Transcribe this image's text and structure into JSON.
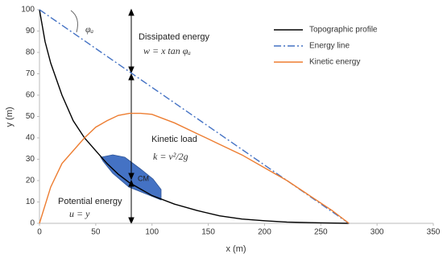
{
  "chart_data": {
    "type": "line",
    "x_label": "x (m)",
    "y_label": "y (m)",
    "xlim": [
      0,
      350
    ],
    "xticks": [
      0,
      50,
      100,
      150,
      200,
      250,
      300,
      350
    ],
    "ylim": [
      0,
      100
    ],
    "yticks": [
      0,
      10,
      20,
      30,
      40,
      50,
      60,
      70,
      80,
      90,
      100
    ],
    "grid": false,
    "legend": "upper right",
    "series": [
      {
        "name": "Topographic profile",
        "color": "#000000",
        "linestyle": "solid",
        "x": [
          0,
          5,
          10,
          20,
          30,
          40,
          50,
          60,
          70,
          80,
          90,
          100,
          120,
          140,
          160,
          180,
          200,
          220,
          250,
          275
        ],
        "values": [
          100,
          85,
          75,
          60,
          48,
          40,
          34,
          28,
          23,
          19,
          16,
          13,
          9,
          6,
          3.5,
          2,
          1.2,
          0.6,
          0.2,
          0
        ]
      },
      {
        "name": "Energy line",
        "color": "#4472c4",
        "linestyle": "dashdot",
        "x": [
          0,
          275
        ],
        "values": [
          100,
          0
        ]
      },
      {
        "name": "Kinetic energy",
        "color": "#ed7d31",
        "linestyle": "solid",
        "x": [
          0,
          10,
          20,
          40,
          50,
          60,
          70,
          80,
          90,
          100,
          120,
          140,
          160,
          180,
          200,
          220,
          240,
          260,
          275
        ],
        "values": [
          0,
          17,
          28,
          40,
          45,
          48,
          50.5,
          51.5,
          51.5,
          51,
          47,
          42,
          37,
          32,
          26,
          20,
          13,
          6,
          0
        ]
      }
    ],
    "annotations": [
      "Dissipated energy",
      "w = x  tan φₐ",
      "Kinetic load",
      "k = v²/2g",
      "Potential energy",
      "u = y",
      "CM",
      "φₐ"
    ]
  }
}
